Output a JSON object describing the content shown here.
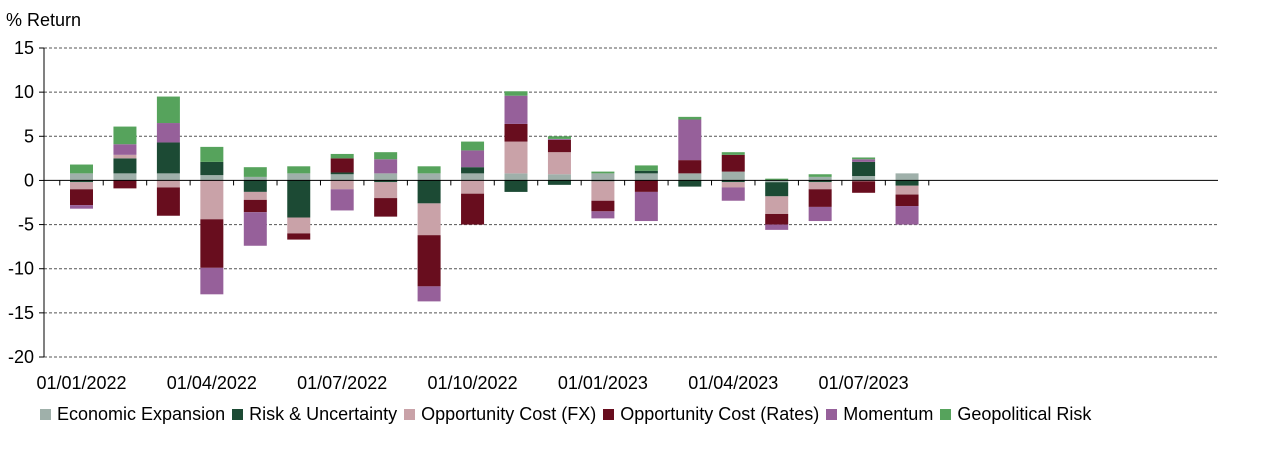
{
  "chart_data": {
    "type": "bar",
    "stacked": true,
    "ylabel": "% Return",
    "ylim": [
      -20,
      15
    ],
    "yticks": [
      15,
      10,
      5,
      0,
      -5,
      -10,
      -15,
      -20
    ],
    "grid": "horizontal-dashed",
    "legend_position": "bottom",
    "x_tick_labels": [
      "01/01/2022",
      "01/04/2022",
      "01/07/2022",
      "01/10/2022",
      "01/01/2023",
      "01/04/2023",
      "01/07/2023"
    ],
    "categories": [
      "Jan-2022",
      "Feb-2022",
      "Mar-2022",
      "Apr-2022",
      "May-2022",
      "Jun-2022",
      "Jul-2022",
      "Aug-2022",
      "Sep-2022",
      "Oct-2022",
      "Nov-2022",
      "Dec-2022",
      "Jan-2023",
      "Feb-2023",
      "Mar-2023",
      "Apr-2023",
      "May-2023",
      "Jun-2023",
      "Jul-2023",
      "Aug-2023"
    ],
    "series": [
      {
        "name": "Economic Expansion",
        "color": "#9fb0aa",
        "values": [
          0.8,
          0.8,
          0.8,
          0.6,
          0.4,
          0.8,
          0.7,
          0.8,
          0.8,
          0.8,
          0.8,
          0.7,
          0.8,
          0.8,
          0.8,
          1.0,
          -0.2,
          0.4,
          0.5,
          0.8
        ]
      },
      {
        "name": "Risk & Uncertainty",
        "color": "#1c4a34",
        "values": [
          -0.2,
          1.7,
          3.5,
          1.5,
          -1.3,
          -4.2,
          0.2,
          -0.2,
          -2.6,
          0.7,
          -1.3,
          -0.5,
          -0.1,
          0.3,
          -0.7,
          -0.2,
          -1.6,
          -0.2,
          1.6,
          -0.6
        ]
      },
      {
        "name": "Opportunity Cost (FX)",
        "color": "#c9a2a8",
        "values": [
          -0.8,
          0.4,
          -0.8,
          -4.4,
          -0.9,
          -1.8,
          -1.0,
          -1.8,
          -3.6,
          -1.5,
          3.6,
          2.5,
          -2.2,
          0,
          0,
          -0.6,
          -2.0,
          -0.8,
          -0.1,
          -1.0
        ]
      },
      {
        "name": "Opportunity Cost (Rates)",
        "color": "#680d1e",
        "values": [
          -1.8,
          -0.9,
          -3.2,
          -5.5,
          -1.4,
          -0.7,
          1.6,
          -2.1,
          -5.8,
          -3.5,
          2.0,
          1.4,
          -1.2,
          -1.3,
          1.5,
          1.9,
          -1.2,
          -2.0,
          -1.3,
          -1.3
        ]
      },
      {
        "name": "Momentum",
        "color": "#96609a",
        "values": [
          -0.4,
          1.2,
          2.2,
          -3.0,
          -3.8,
          0,
          -2.4,
          1.6,
          -1.7,
          1.9,
          3.2,
          0.1,
          -0.8,
          -3.3,
          4.6,
          -1.5,
          -0.6,
          -1.6,
          0.3,
          -2.1
        ]
      },
      {
        "name": "Geopolitical Risk",
        "color": "#56a35c",
        "values": [
          1.0,
          2.0,
          3.0,
          1.7,
          1.1,
          0.8,
          0.5,
          0.8,
          0.8,
          1.0,
          0.5,
          0.3,
          0.2,
          0.6,
          0.3,
          0.3,
          0.2,
          0.3,
          0.2,
          0
        ]
      }
    ]
  }
}
